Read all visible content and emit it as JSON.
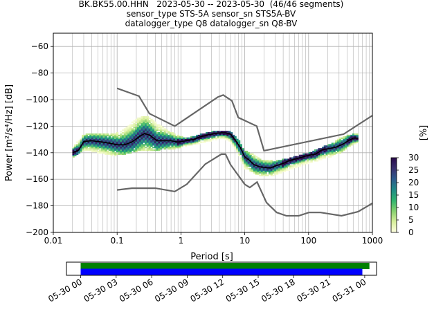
{
  "title_lines": [
    "BK.BK55.00.HHN   2023-05-30 -- 2023-05-30  (46/46 segments)",
    "sensor_type STS-5A sensor_sn STS5A-BV",
    "datalogger_type Q8 datalogger_sn Q8-BV"
  ],
  "chart_data": [
    {
      "type": "heatmap",
      "xlabel": "Period [s]",
      "ylabel": "Power [m²/s⁴/Hz] [dB]",
      "xscale": "log",
      "xlim": [
        0.01,
        1000
      ],
      "ylim": [
        -200,
        -50
      ],
      "x_tick_labels": [
        "0.01",
        "0.1",
        "1",
        "10",
        "100",
        "1000"
      ],
      "y_tick_labels": [
        "−60",
        "−80",
        "−100",
        "−120",
        "−140",
        "−160",
        "−180",
        "−200"
      ],
      "grid": true,
      "colorbar": {
        "label": "[%]",
        "range": [
          0,
          30
        ],
        "tick_labels": [
          "0",
          "5",
          "10",
          "15",
          "20",
          "25",
          "30"
        ],
        "colors": [
          "#ffffe0",
          "#d7ee9a",
          "#86d06e",
          "#2fb36e",
          "#1f8a86",
          "#2c5a8c",
          "#39306e",
          "#2a0a4a"
        ]
      },
      "noise_models": {
        "nhnm": {
          "x": [
            0.1,
            0.22,
            0.32,
            0.8,
            3.8,
            4.6,
            6.3,
            7.9,
            15.4,
            20,
            354.8,
            1000
          ],
          "y": [
            -91.5,
            -97.4,
            -110.5,
            -120,
            -98,
            -96.5,
            -101,
            -113.5,
            -120,
            -138.5,
            -126,
            -112
          ],
          "color": "#666666"
        },
        "nlnm": {
          "x": [
            0.1,
            0.17,
            0.4,
            0.8,
            1.24,
            2.4,
            4.3,
            5,
            6,
            10,
            12,
            15.6,
            21.9,
            31.6,
            45,
            70,
            101,
            154,
            328,
            600,
            1000
          ],
          "y": [
            -168,
            -166.7,
            -166.7,
            -169.2,
            -163.7,
            -148.6,
            -141.1,
            -141.1,
            -149,
            -163.8,
            -166.2,
            -162.1,
            -177.5,
            -185,
            -187.5,
            -187.5,
            -185,
            -185,
            -187.5,
            -184.4,
            -178
          ]
        }
      },
      "mean_psd": {
        "x": [
          0.02,
          0.025,
          0.03,
          0.04,
          0.06,
          0.08,
          0.1,
          0.13,
          0.17,
          0.22,
          0.27,
          0.33,
          0.42,
          0.55,
          0.7,
          0.9,
          1.2,
          1.6,
          2,
          2.7,
          3.5,
          4.2,
          5,
          6,
          7,
          8.5,
          10,
          12,
          14,
          17,
          20,
          25,
          30,
          40,
          50,
          70,
          100,
          130,
          160,
          200,
          260,
          330,
          420,
          500,
          600
        ],
        "y": [
          -140,
          -138,
          -131.5,
          -131,
          -132,
          -133,
          -134,
          -134,
          -132,
          -128,
          -125.5,
          -127,
          -131,
          -131,
          -131,
          -132,
          -131,
          -130,
          -128,
          -126.5,
          -125.5,
          -125,
          -125,
          -126,
          -130,
          -136,
          -143,
          -146,
          -149,
          -150.5,
          -151,
          -151.5,
          -150,
          -148,
          -146,
          -144,
          -142,
          -141,
          -138,
          -137,
          -136,
          -134,
          -131,
          -129,
          -129
        ]
      },
      "psd_band": {
        "x": [
          0.02,
          0.03,
          0.05,
          0.08,
          0.1,
          0.15,
          0.2,
          0.3,
          0.5,
          0.8,
          1.2,
          2,
          3,
          4.5,
          6,
          8,
          10,
          15,
          20,
          30,
          50,
          100,
          200,
          330,
          500,
          600
        ],
        "upper": [
          -136,
          -126,
          -126,
          -126,
          -125,
          -120,
          -114,
          -112,
          -120,
          -126,
          -129,
          -126,
          -124,
          -123,
          -124,
          -130,
          -138,
          -142,
          -146,
          -146,
          -144,
          -140,
          -134,
          -128,
          -126,
          -126
        ],
        "lower": [
          -144,
          -138,
          -140,
          -142,
          -142,
          -141,
          -139,
          -138,
          -138,
          -137,
          -135,
          -133,
          -131,
          -129,
          -132,
          -142,
          -152,
          -156,
          -158,
          -157,
          -153,
          -148,
          -144,
          -140,
          -134,
          -132
        ]
      }
    },
    {
      "type": "timeline",
      "x_tick_labels": [
        "05-30 00",
        "05-30 03",
        "05-30 06",
        "05-30 09",
        "05-30 12",
        "05-30 15",
        "05-30 18",
        "05-30 21",
        "05-31 00"
      ],
      "x_range_hours": [
        -1.2,
        25
      ],
      "bars": [
        {
          "color": "#008000",
          "start_hour": 0,
          "end_hour": 24.4
        },
        {
          "color": "#0000ff",
          "start_hour": 0,
          "end_hour": 23.8
        }
      ]
    }
  ]
}
